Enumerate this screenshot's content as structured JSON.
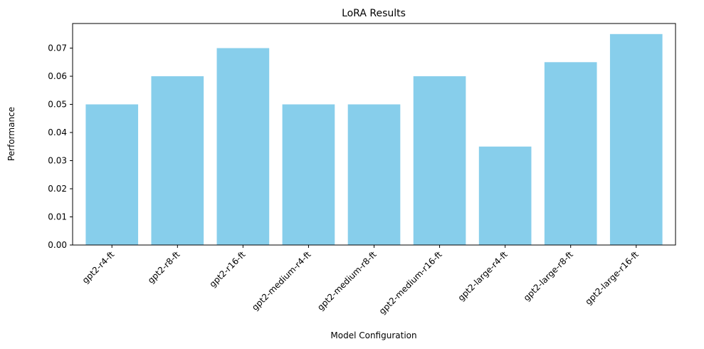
{
  "chart_data": {
    "type": "bar",
    "title": "LoRA Results",
    "xlabel": "Model Configuration",
    "ylabel": "Performance",
    "categories": [
      "gpt2-r4-ft",
      "gpt2-r8-ft",
      "gpt2-r16-ft",
      "gpt2-medium-r4-ft",
      "gpt2-medium-r8-ft",
      "gpt2-medium-r16-ft",
      "gpt2-large-r4-ft",
      "gpt2-large-r8-ft",
      "gpt2-large-r16-ft"
    ],
    "values": [
      0.05,
      0.06,
      0.07,
      0.05,
      0.05,
      0.06,
      0.035,
      0.065,
      0.075
    ],
    "ylim": [
      0,
      0.07875
    ],
    "yticks": [
      "0.00",
      "0.01",
      "0.02",
      "0.03",
      "0.04",
      "0.05",
      "0.06",
      "0.07"
    ],
    "bar_color": "#87ceeb",
    "grid": false,
    "legend": "none"
  }
}
